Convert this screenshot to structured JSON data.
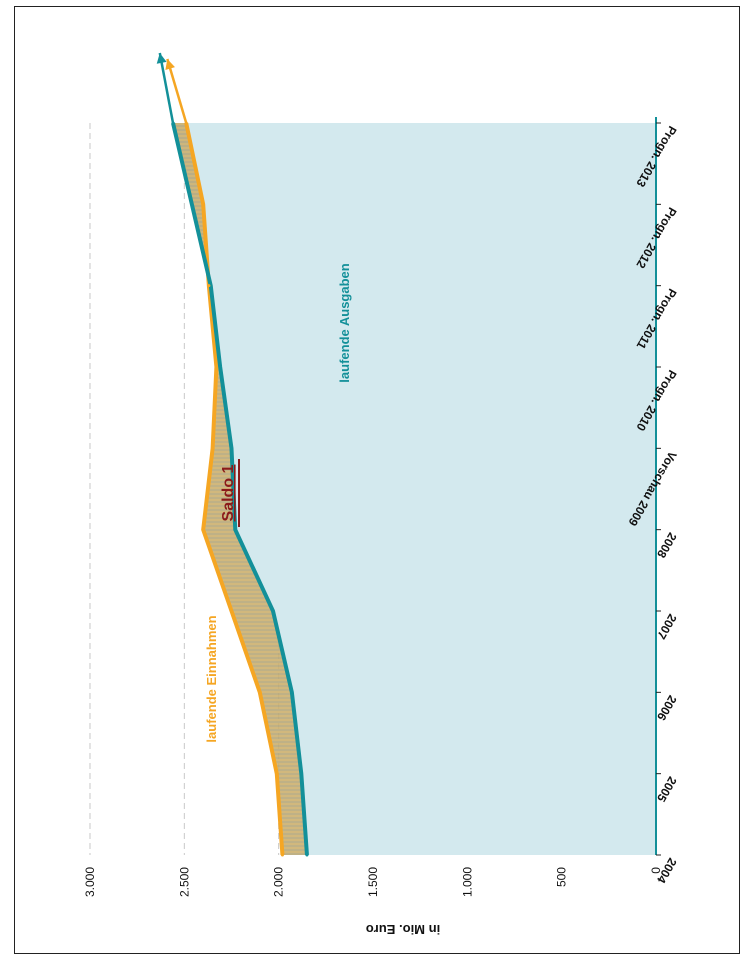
{
  "chart_data": {
    "type": "area",
    "orientation": "rotated 90° clockwise",
    "categories": [
      "2004",
      "2005",
      "2006",
      "2007",
      "2008",
      "Vorschau 2009",
      "Progn. 2010",
      "Progn. 2011",
      "Progn. 2012",
      "Progn. 2013"
    ],
    "series": [
      {
        "name": "laufende Ausgaben",
        "color": "#139099",
        "fill": "#d3e9ee",
        "values": [
          1850,
          1880,
          1930,
          2030,
          2230,
          2250,
          2310,
          2360,
          2460,
          2560
        ]
      },
      {
        "name": "laufende Einnahmen",
        "color": "#f5a623",
        "values": [
          1980,
          2010,
          2100,
          2250,
          2400,
          2350,
          2330,
          2370,
          2400,
          2490
        ]
      }
    ],
    "annotation": {
      "text": "Saldo 1",
      "color": "#8b1a1a"
    },
    "ylabel": "in Mio. Euro",
    "ylim": [
      0,
      3000
    ],
    "yticks": [
      0,
      500,
      1000,
      1500,
      2000,
      2500,
      3000
    ],
    "ytick_labels": [
      "0",
      "500",
      "1.000",
      "1.500",
      "2.000",
      "2.500",
      "3.000"
    ],
    "grid": true,
    "arrow_tips": {
      "ausgaben": 2630,
      "einnahmen": 2590
    }
  }
}
